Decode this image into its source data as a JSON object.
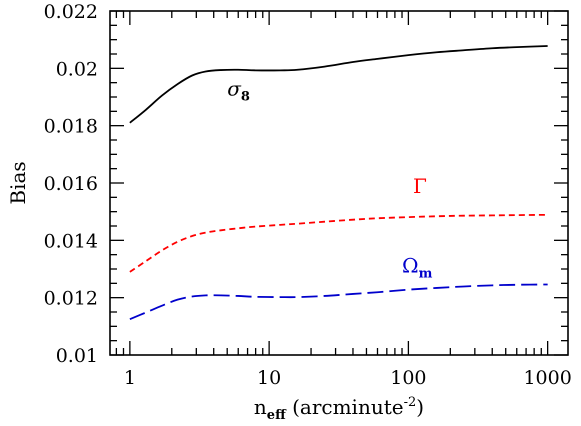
{
  "chart_data": {
    "type": "line",
    "xscale": "log",
    "xlim": [
      0.72,
      1400
    ],
    "ylim": [
      0.01,
      0.022
    ],
    "xticks": [
      1,
      10,
      100,
      1000
    ],
    "xtick_labels": [
      "1",
      "10",
      "100",
      "1000"
    ],
    "yticks": [
      0.01,
      0.012,
      0.014,
      0.016,
      0.018,
      0.02,
      0.022
    ],
    "ytick_labels": [
      "0.01",
      "0.012",
      "0.014",
      "0.016",
      "0.018",
      "0.02",
      "0.022"
    ],
    "xlabel": {
      "main": "n",
      "sub": "eff",
      "rest": " (arcminute",
      "sup": "-2",
      "close": ")"
    },
    "ylabel": "Bias",
    "grid": false,
    "legend": "none",
    "series": [
      {
        "label_main": "σ",
        "label_sub": "8",
        "color": "#000000",
        "dash": "solid",
        "x": [
          1,
          1.3,
          1.7,
          2.2,
          2.8,
          3.5,
          4.5,
          6,
          8,
          12,
          16,
          25,
          40,
          60,
          100,
          160,
          250,
          400,
          600,
          1000
        ],
        "y": [
          0.0181,
          0.01855,
          0.01905,
          0.01945,
          0.01975,
          0.01989,
          0.01994,
          0.01995,
          0.01993,
          0.01993,
          0.01995,
          0.02006,
          0.02022,
          0.02033,
          0.02046,
          0.02056,
          0.02063,
          0.0207,
          0.02074,
          0.02078
        ],
        "label_pos": [
          5,
          0.01905
        ]
      },
      {
        "label_main": "Γ",
        "color": "#ff0000",
        "dash": "dashed",
        "x": [
          1,
          1.3,
          1.7,
          2.2,
          2.8,
          3.5,
          4.5,
          6,
          8,
          12,
          16,
          25,
          40,
          60,
          100,
          160,
          250,
          400,
          600,
          1000
        ],
        "y": [
          0.0129,
          0.01327,
          0.01365,
          0.01395,
          0.01415,
          0.01427,
          0.01435,
          0.01442,
          0.01448,
          0.01454,
          0.01458,
          0.01465,
          0.01472,
          0.01477,
          0.01481,
          0.01484,
          0.01486,
          0.01487,
          0.01488,
          0.01489
        ],
        "label_pos": [
          108,
          0.01565
        ]
      },
      {
        "label_main": "Ω",
        "label_sub": "m",
        "color": "#0000cc",
        "dash": "longdash",
        "x": [
          1,
          1.3,
          1.7,
          2.2,
          2.8,
          3.5,
          4.5,
          6,
          8,
          12,
          16,
          25,
          40,
          60,
          100,
          160,
          250,
          400,
          600,
          1000
        ],
        "y": [
          0.01125,
          0.01148,
          0.01172,
          0.01193,
          0.01204,
          0.01208,
          0.01208,
          0.01206,
          0.01203,
          0.01202,
          0.01202,
          0.01206,
          0.01213,
          0.01219,
          0.01228,
          0.01234,
          0.01239,
          0.01243,
          0.01245,
          0.01246
        ],
        "label_pos": [
          90,
          0.01287
        ]
      }
    ]
  }
}
